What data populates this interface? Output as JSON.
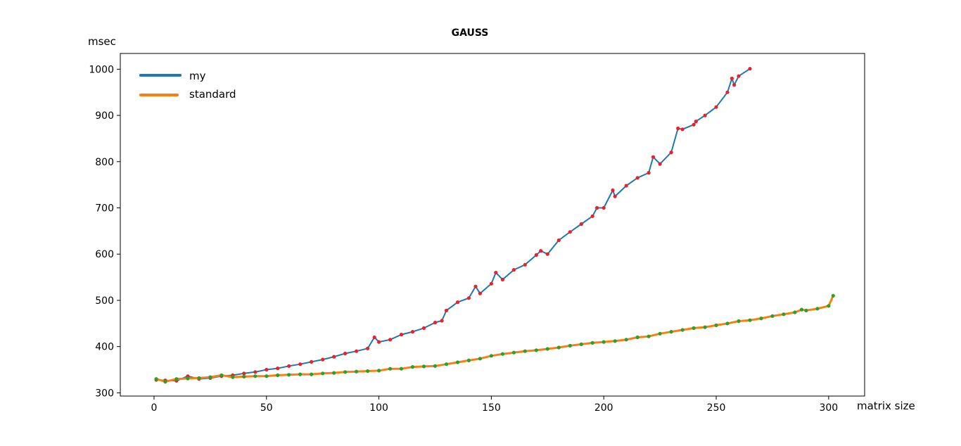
{
  "chart_data": {
    "type": "line",
    "title": "GAUSS",
    "xlabel": "matrix size",
    "ylabel": "msec",
    "xlim": [
      -15,
      316
    ],
    "ylim": [
      293,
      1034
    ],
    "x_ticks": [
      0,
      50,
      100,
      150,
      200,
      250,
      300
    ],
    "y_ticks": [
      300,
      400,
      500,
      600,
      700,
      800,
      900,
      1000
    ],
    "legend_position": "top-left",
    "grid": false,
    "series": [
      {
        "name": "my",
        "color": "#1f77b4",
        "marker_color": "#e8222b",
        "x": [
          1,
          5,
          10,
          15,
          20,
          25,
          30,
          35,
          40,
          45,
          50,
          55,
          60,
          65,
          70,
          75,
          80,
          85,
          90,
          95,
          98,
          100,
          105,
          110,
          115,
          120,
          125,
          128,
          130,
          135,
          140,
          143,
          145,
          150,
          152,
          155,
          160,
          165,
          170,
          172,
          175,
          180,
          185,
          190,
          195,
          197,
          200,
          204,
          205,
          210,
          215,
          220,
          222,
          225,
          230,
          233,
          235,
          240,
          241,
          245,
          250,
          255,
          257,
          258,
          260,
          265
        ],
        "y": [
          328,
          327,
          326,
          336,
          330,
          332,
          336,
          338,
          342,
          345,
          350,
          353,
          358,
          362,
          367,
          372,
          378,
          385,
          390,
          396,
          420,
          410,
          415,
          426,
          432,
          440,
          452,
          456,
          478,
          496,
          505,
          530,
          515,
          536,
          560,
          545,
          566,
          577,
          598,
          607,
          600,
          630,
          648,
          665,
          682,
          700,
          700,
          738,
          725,
          748,
          765,
          776,
          810,
          795,
          820,
          872,
          870,
          880,
          887,
          900,
          918,
          950,
          980,
          966,
          985,
          1001
        ]
      },
      {
        "name": "standard",
        "color": "#ff7f0e",
        "marker_color": "#2ca02c",
        "x": [
          1,
          5,
          10,
          15,
          20,
          25,
          30,
          35,
          40,
          45,
          50,
          55,
          60,
          65,
          70,
          75,
          80,
          85,
          90,
          95,
          100,
          105,
          110,
          115,
          120,
          125,
          130,
          135,
          140,
          145,
          150,
          155,
          160,
          165,
          170,
          175,
          180,
          185,
          190,
          195,
          200,
          205,
          210,
          215,
          220,
          225,
          230,
          235,
          240,
          245,
          250,
          255,
          260,
          265,
          270,
          275,
          280,
          285,
          288,
          290,
          295,
          300,
          302
        ],
        "y": [
          330,
          324,
          330,
          331,
          332,
          334,
          338,
          334,
          335,
          336,
          336,
          338,
          339,
          340,
          340,
          342,
          343,
          345,
          346,
          347,
          348,
          352,
          352,
          356,
          357,
          358,
          362,
          366,
          370,
          374,
          380,
          384,
          387,
          390,
          392,
          395,
          398,
          402,
          405,
          408,
          410,
          412,
          415,
          420,
          422,
          428,
          432,
          436,
          440,
          442,
          446,
          450,
          455,
          457,
          461,
          466,
          470,
          474,
          480,
          478,
          482,
          488,
          510
        ]
      }
    ]
  }
}
